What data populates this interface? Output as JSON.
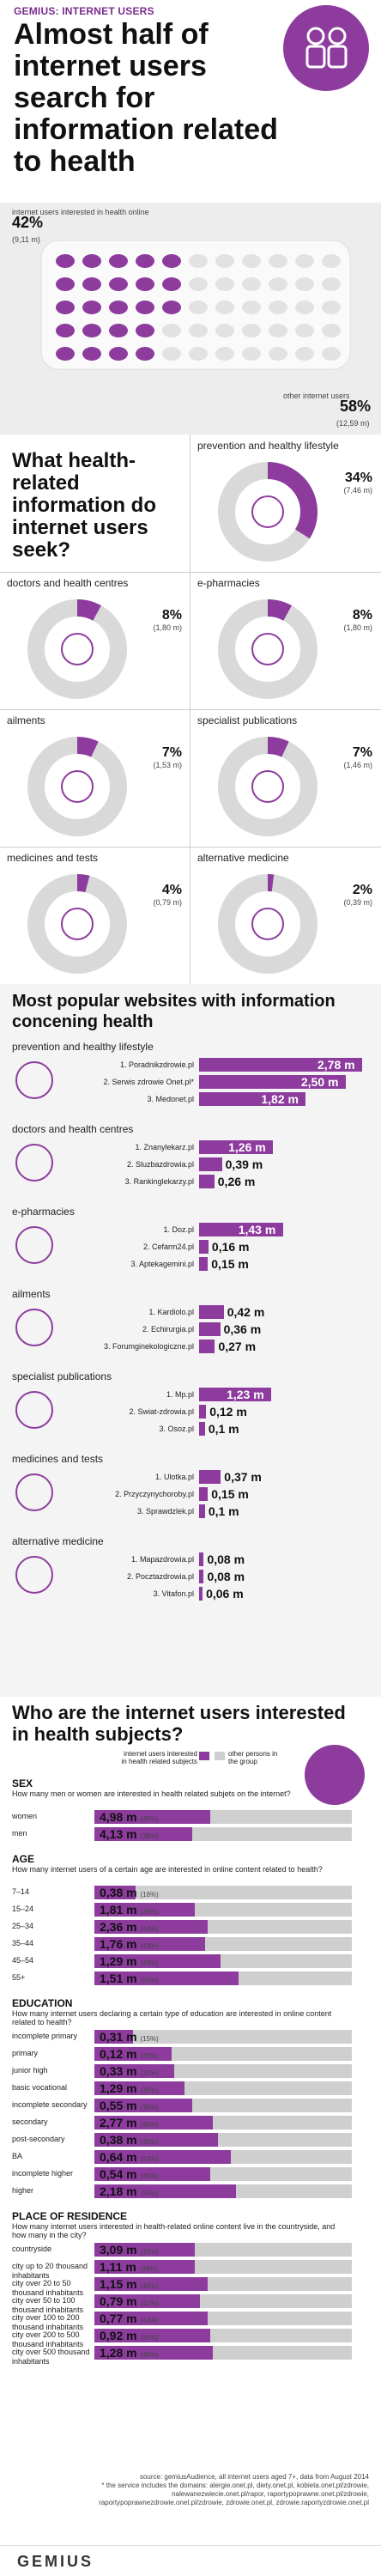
{
  "header": {
    "tag": "GEMIUS: INTERNET USERS",
    "title": "Almost half of internet users search for information related to health"
  },
  "split": {
    "interested_label": "internet users interested in health online",
    "interested_pct": "42%",
    "interested_abs": "(9,11 m)",
    "other_label": "other internet users",
    "other_pct": "58%",
    "other_abs": "(12,59 m)"
  },
  "topics_q": "What health-related information do internet users seek?",
  "chart_data": [
    {
      "type": "pie",
      "title": "What health-related information do internet users seek?",
      "slices": [
        {
          "label": "prevention and healthy lifestyle",
          "pct": 34,
          "abs": "(7,46 m)"
        },
        {
          "label": "doctors and health centres",
          "pct": 8,
          "abs": "(1,80 m)"
        },
        {
          "label": "e-pharmacies",
          "pct": 8,
          "abs": "(1,80 m)"
        },
        {
          "label": "ailments",
          "pct": 7,
          "abs": "(1,53 m)"
        },
        {
          "label": "specialist publications",
          "pct": 7,
          "abs": "(1,46 m)"
        },
        {
          "label": "medicines and tests",
          "pct": 4,
          "abs": "(0,79 m)"
        },
        {
          "label": "alternative medicine",
          "pct": 2,
          "abs": "(0,39 m)"
        }
      ]
    },
    {
      "type": "bar",
      "title": "Most popular websites with information concening health",
      "unit": "m",
      "groups": [
        {
          "name": "prevention and healthy lifestyle",
          "sites": [
            {
              "n": "1. Poradnikzdrowie.pl",
              "v": 2.78
            },
            {
              "n": "2. Serwis zdrowie Onet.pl*",
              "v": 2.5
            },
            {
              "n": "3. Medonet.pl",
              "v": 1.82
            }
          ]
        },
        {
          "name": "doctors and health centres",
          "sites": [
            {
              "n": "1. Znanylekarz.pl",
              "v": 1.26
            },
            {
              "n": "2. Sluzbazdrowia.pl",
              "v": 0.39
            },
            {
              "n": "3. Rankinglekarzy.pl",
              "v": 0.26
            }
          ]
        },
        {
          "name": "e-pharmacies",
          "sites": [
            {
              "n": "1. Doz.pl",
              "v": 1.43
            },
            {
              "n": "2. Cefarm24.pl",
              "v": 0.16
            },
            {
              "n": "3. Aptekagemini.pl",
              "v": 0.15
            }
          ]
        },
        {
          "name": "ailments",
          "sites": [
            {
              "n": "1. Kardiolo.pl",
              "v": 0.42
            },
            {
              "n": "2. Echirurgia.pl",
              "v": 0.36
            },
            {
              "n": "3. Forumginekologiczne.pl",
              "v": 0.27
            }
          ]
        },
        {
          "name": "specialist publications",
          "sites": [
            {
              "n": "1. Mp.pl",
              "v": 1.23
            },
            {
              "n": "2. Swiat-zdrowia.pl",
              "v": 0.12
            },
            {
              "n": "3. Osoz.pl",
              "v": 0.1
            }
          ]
        },
        {
          "name": "medicines and tests",
          "sites": [
            {
              "n": "1. Ulotka.pl",
              "v": 0.37
            },
            {
              "n": "2. Przyczynychoroby.pl",
              "v": 0.15
            },
            {
              "n": "3. Sprawdzlek.pl",
              "v": 0.1
            }
          ]
        },
        {
          "name": "alternative medicine",
          "sites": [
            {
              "n": "1. Mapazdrowia.pl",
              "v": 0.08
            },
            {
              "n": "2. Pocztazdrowia.pl",
              "v": 0.08
            },
            {
              "n": "3. Vitafon.pl",
              "v": 0.06
            }
          ]
        }
      ]
    },
    {
      "type": "bar",
      "title": "Who are the internet users interested in health subjects?",
      "groups": [
        {
          "name": "SEX",
          "q": "How many men or women are interested in health related subjets on the internet?",
          "rows": [
            {
              "l": "women",
              "v": 4.98,
              "p": 45
            },
            {
              "l": "men",
              "v": 4.13,
              "p": 38
            }
          ]
        },
        {
          "name": "AGE",
          "q": "How many internet users of a certain age are interested in online content related to health?",
          "rows": [
            {
              "l": "7–14",
              "v": 0.38,
              "p": 16
            },
            {
              "l": "15–24",
              "v": 1.81,
              "p": 39
            },
            {
              "l": "25–34",
              "v": 2.36,
              "p": 44
            },
            {
              "l": "35–44",
              "v": 1.76,
              "p": 43
            },
            {
              "l": "45–54",
              "v": 1.29,
              "p": 49
            },
            {
              "l": "55+",
              "v": 1.51,
              "p": 56
            }
          ]
        },
        {
          "name": "EDUCATION",
          "q": "How many internet users declaring a certain type of education are interested in online content related to health?",
          "rows": [
            {
              "l": "incomplete primary",
              "v": 0.31,
              "p": 15
            },
            {
              "l": "primary",
              "v": 0.12,
              "p": 30
            },
            {
              "l": "junior high",
              "v": 0.33,
              "p": 31
            },
            {
              "l": "basic vocational",
              "v": 1.29,
              "p": 35
            },
            {
              "l": "incomplete secondary",
              "v": 0.55,
              "p": 38
            },
            {
              "l": "secondary",
              "v": 2.77,
              "p": 46
            },
            {
              "l": "post-secondary",
              "v": 0.38,
              "p": 48
            },
            {
              "l": "BA",
              "v": 0.64,
              "p": 53
            },
            {
              "l": "incomplete higher",
              "v": 0.54,
              "p": 45
            },
            {
              "l": "higher",
              "v": 2.18,
              "p": 55
            }
          ]
        },
        {
          "name": "PLACE OF RESIDENCE",
          "q": "How many internet users interested in health-related online content live in the countryside, and how many in the city?",
          "rows": [
            {
              "l": "countryside",
              "v": 3.09,
              "p": 39
            },
            {
              "l": "city up to 20 thousand inhabitants",
              "v": 1.11,
              "p": 39
            },
            {
              "l": "city over 20 to 50 thousand inhabitants",
              "v": 1.15,
              "p": 44
            },
            {
              "l": "city over 50 to 100 thousand inhabitants",
              "v": 0.79,
              "p": 41
            },
            {
              "l": "city over 100 to 200 thousand inhabitants",
              "v": 0.77,
              "p": 44
            },
            {
              "l": "city over 200 to 500 thousand inhabitants",
              "v": 0.92,
              "p": 45
            },
            {
              "l": "city over 500 thousand inhabitants",
              "v": 1.28,
              "p": 46
            }
          ]
        }
      ]
    }
  ],
  "websites_h": "Most popular websites with information concening health",
  "who_h": "Who are the internet users interested in health subjects?",
  "legend": {
    "a": "internet users interested in health related subjects",
    "b": "other persons in the group"
  },
  "footnote": "source: gemiusAudience, all internet users aged 7+, data from August 2014\n* the service includes the domains: alergie.onet.pl, diety.onet.pl, kobieta.onet.pl/zdrowie, nalewanezwiecie.onet.pl/rapor, raportypoprawne.onet.pl/zdrowie, raportypoprawnezdrowie.onet.pl/zdrowie, zdrowie.onet.pl, zdrowie.raportyzdrowie.onet.pl",
  "logo": "GEMIUS",
  "colors": {
    "accent": "#8d3c9e",
    "grey": "#cfcfcf"
  }
}
